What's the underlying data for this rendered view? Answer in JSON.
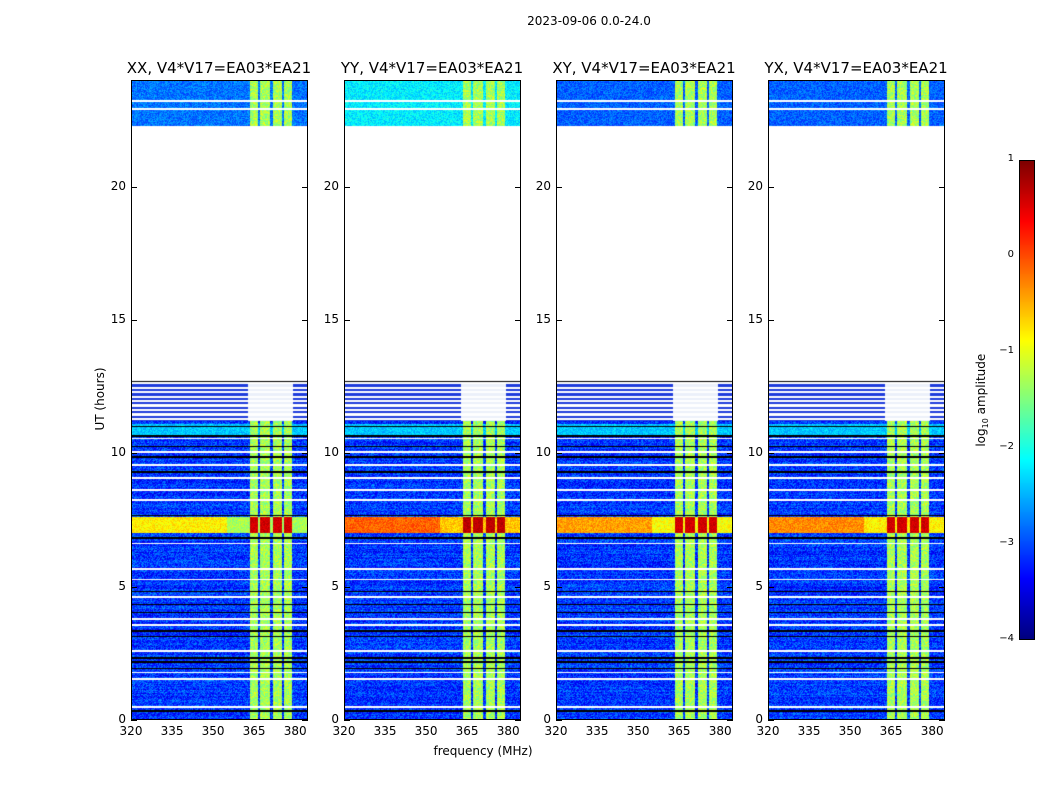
{
  "chart_data": {
    "type": "heatmap",
    "title": "2023-09-06 0.0-24.0",
    "xlabel": "frequency (MHz)",
    "ylabel": "UT (hours)",
    "xlim": [
      320,
      384.7
    ],
    "ylim": [
      0,
      24
    ],
    "xticks": [
      "320",
      "335",
      "350",
      "365",
      "380"
    ],
    "xtick_values": [
      320,
      335,
      350,
      365,
      380
    ],
    "yticks": [
      "0",
      "5",
      "10",
      "15",
      "20"
    ],
    "ytick_values": [
      0,
      5,
      10,
      15,
      20
    ],
    "panels": [
      {
        "title": "XX, V4*V17=EA03*EA21",
        "rfi_level": 0.6,
        "rfi_row_level": -0.8,
        "top_level": -2.8
      },
      {
        "title": "YY, V4*V17=EA03*EA21",
        "rfi_level": 0.7,
        "rfi_row_level": -0.1,
        "top_level": -2.2
      },
      {
        "title": "XY, V4*V17=EA03*EA21",
        "rfi_level": 0.6,
        "rfi_row_level": -0.4,
        "top_level": -2.9
      },
      {
        "title": "YX, V4*V17=EA03*EA21",
        "rfi_level": 0.6,
        "rfi_row_level": -0.3,
        "top_level": -2.9
      }
    ],
    "background_level": -3.1,
    "rfi_channels_mhz": [
      [
        363.5,
        366.5
      ],
      [
        367.2,
        371.2
      ],
      [
        372.0,
        375.5
      ],
      [
        376.3,
        379.2
      ]
    ],
    "rfi_channel_level": -1.3,
    "strong_rfi_time_h": [
      7.0,
      7.6
    ],
    "no_data_time_h": [
      12.7,
      22.3
    ],
    "flagged_times_h": [
      0.45,
      1.5,
      1.75,
      2.55,
      3.55,
      3.75,
      4.6,
      5.25,
      5.65,
      6.6,
      8.25,
      8.6,
      9.05,
      9.55,
      10.05,
      10.55,
      22.95,
      23.25
    ],
    "gap_boundary_times_h": [
      0.3,
      1.9,
      2.15,
      2.3,
      3.1,
      3.3,
      4.0,
      4.3,
      4.8,
      6.8,
      7.65,
      9.3,
      9.85,
      10.25,
      10.65,
      11.0,
      12.7
    ],
    "colorbar": {
      "label": "log10 amplitude",
      "label_main": "log",
      "label_sub": "10",
      "label_rest": " amplitude",
      "range": [
        -4,
        1
      ],
      "ticks": [
        "1",
        "0",
        "−1",
        "−2",
        "−3",
        "−4"
      ],
      "tick_values": [
        1,
        0,
        -1,
        -2,
        -3,
        -4
      ],
      "colormap": "jet"
    }
  }
}
